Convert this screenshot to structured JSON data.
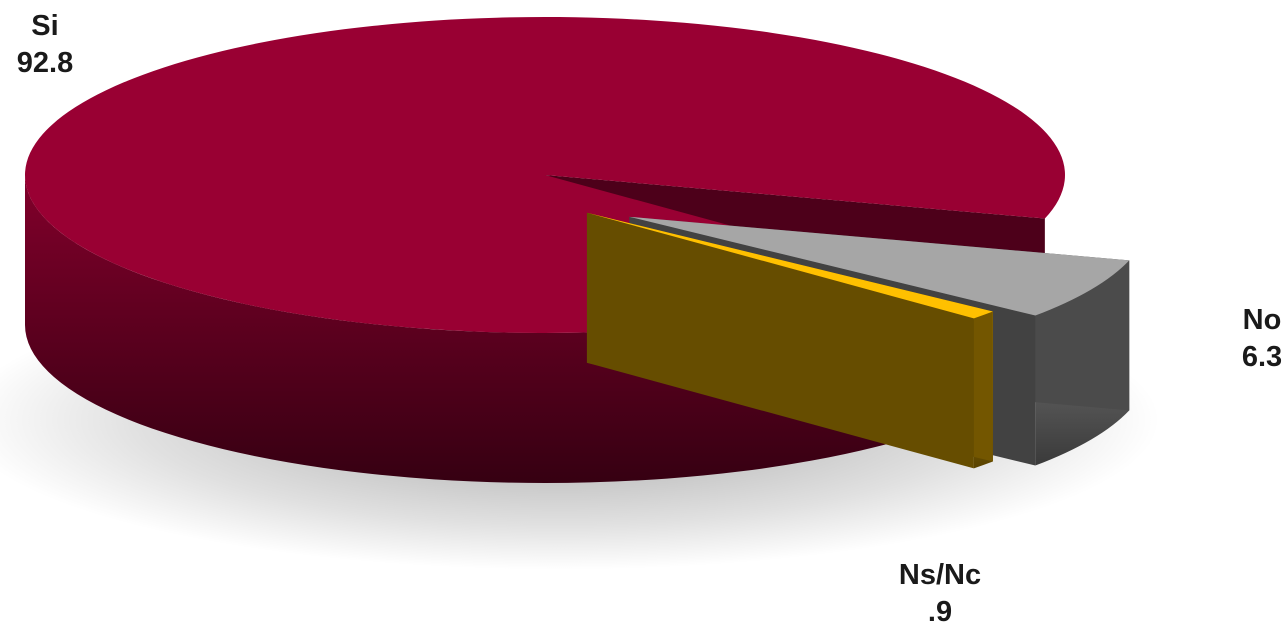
{
  "chart_data": {
    "type": "pie",
    "style": "3d-exploded",
    "slices": [
      {
        "label": "Si",
        "value_label": "92.8",
        "value": 92.8,
        "color": "#990033"
      },
      {
        "label": "No",
        "value_label": "6.3",
        "value": 6.3,
        "color": "#a6a6a6"
      },
      {
        "label": "Ns/Nc",
        "value_label": ".9",
        "value": 0.9,
        "color": "#ffc000"
      }
    ],
    "title": "",
    "legend": "none"
  }
}
